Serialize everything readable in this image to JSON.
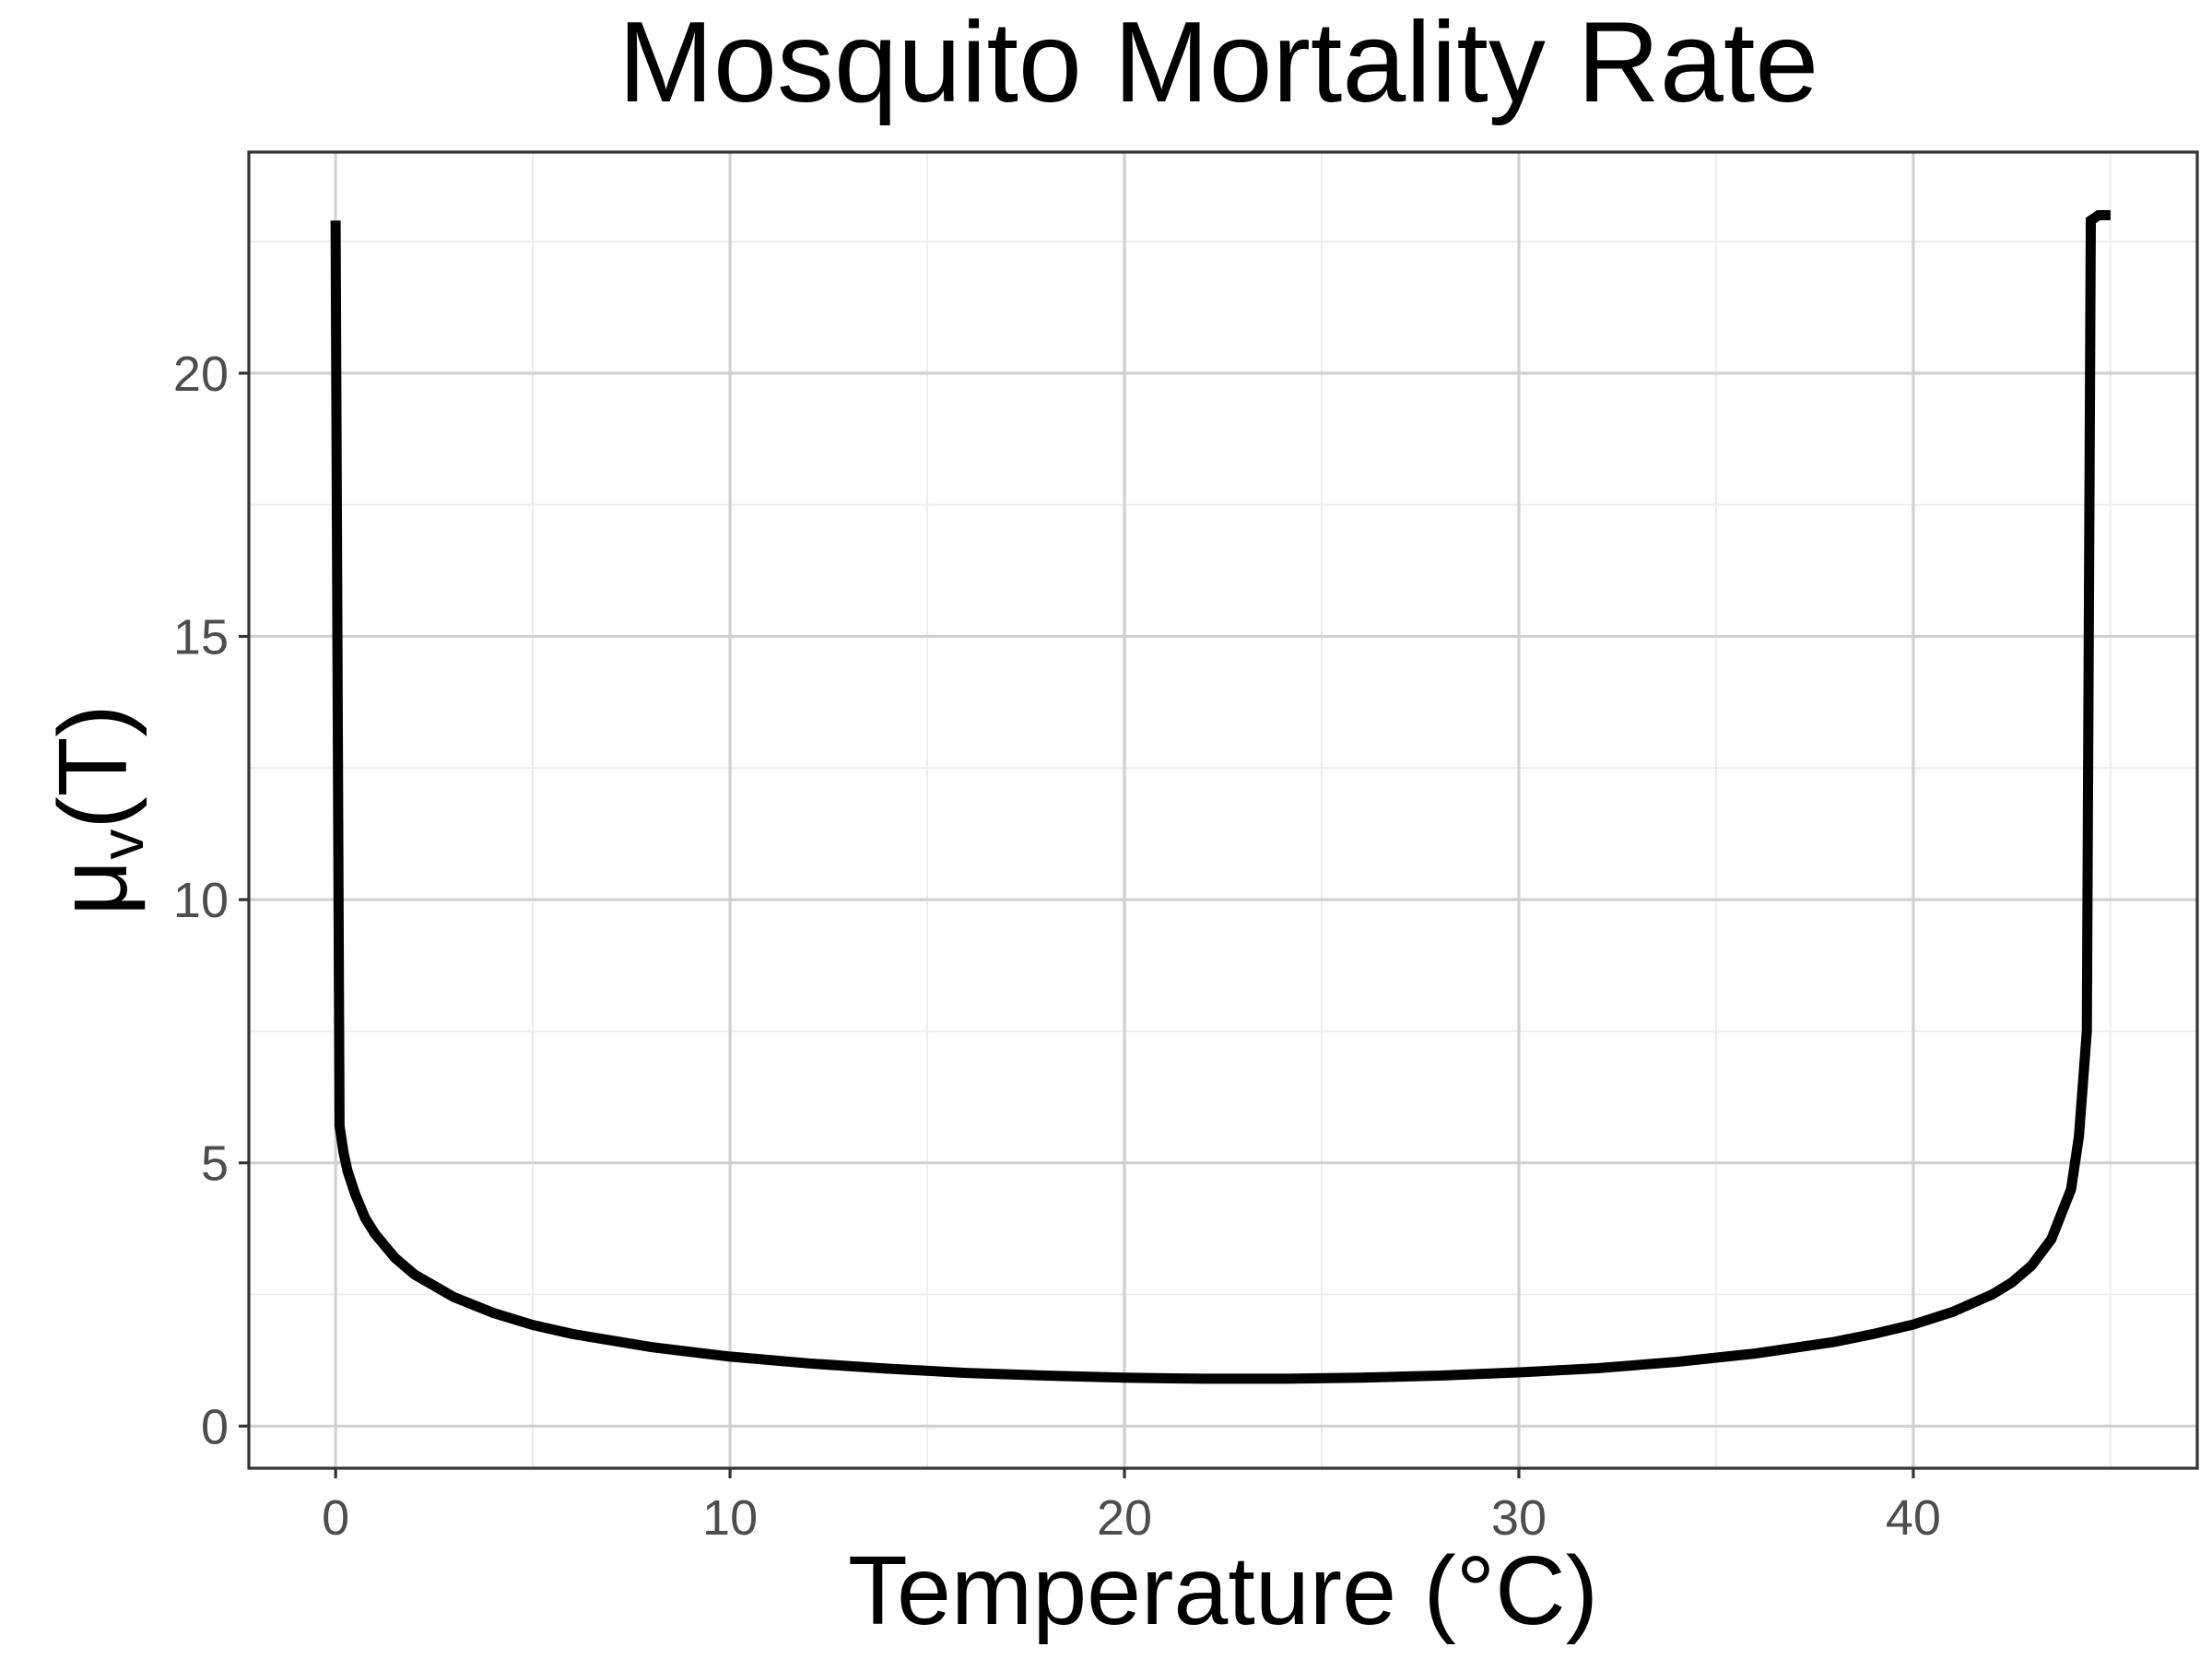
{
  "chart_data": {
    "type": "line",
    "title": "Mosquito Mortality Rate",
    "xlabel": "Temperature (°C)",
    "ylabel": {
      "main": "μ",
      "sub": "v",
      "tail": "(T)"
    },
    "xlim": [
      -2.2,
      47.2
    ],
    "ylim": [
      -0.8,
      24.2
    ],
    "x_ticks": [
      0,
      10,
      20,
      30,
      40
    ],
    "y_ticks": [
      0,
      5,
      10,
      15,
      20
    ],
    "x_minor": [
      5,
      15,
      25,
      35,
      45
    ],
    "y_minor": [
      2.5,
      7.5,
      12.5,
      17.5,
      22.5
    ],
    "grid": true,
    "legend": "none",
    "colors": {
      "line": "#000000",
      "grid_major": "#d1d1d1",
      "grid_minor": "#ebebeb",
      "panel_border": "#333333"
    },
    "series": [
      {
        "x": [
          0,
          0.1,
          0.2,
          0.3,
          0.5,
          0.75,
          1,
          1.5,
          2,
          3,
          4,
          5,
          6,
          8,
          10,
          12,
          14,
          16,
          18,
          20,
          22,
          24,
          26,
          28,
          30,
          32,
          34,
          36,
          38,
          39,
          40,
          41,
          42,
          42.5,
          43,
          43.5,
          44,
          44.2,
          44.4,
          44.5,
          44.7,
          45
        ],
        "y": [
          22.9,
          5.7,
          5.2,
          4.85,
          4.4,
          3.95,
          3.65,
          3.2,
          2.88,
          2.45,
          2.15,
          1.92,
          1.75,
          1.5,
          1.32,
          1.19,
          1.09,
          1.01,
          0.96,
          0.92,
          0.9,
          0.9,
          0.92,
          0.96,
          1.02,
          1.1,
          1.22,
          1.38,
          1.6,
          1.75,
          1.93,
          2.17,
          2.5,
          2.73,
          3.05,
          3.55,
          4.5,
          5.5,
          7.5,
          22.9,
          23,
          23
        ]
      }
    ]
  }
}
